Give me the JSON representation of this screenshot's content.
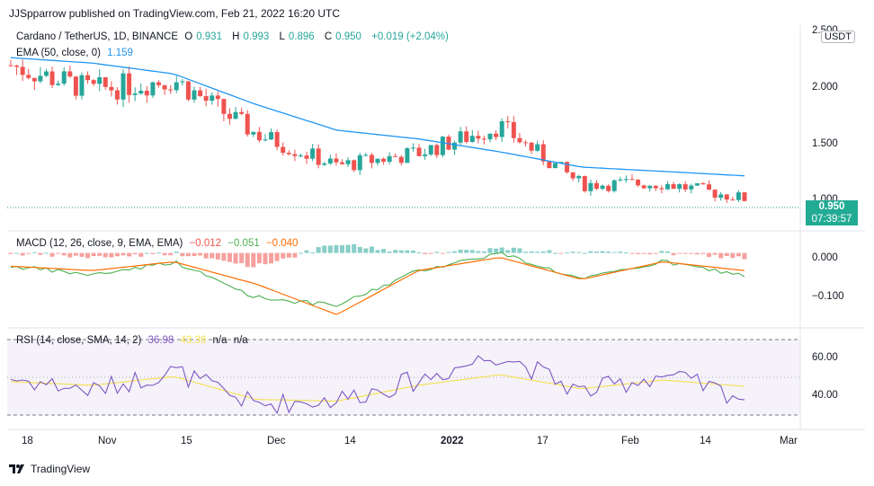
{
  "header": {
    "publisher_line": "JJSpparrow published on TradingView.com, Feb 21, 2022 16:20 UTC"
  },
  "main_legend": {
    "symbol": "Cardano / TetherUS, 1D, BINANCE",
    "open_label": "O",
    "open": "0.931",
    "high_label": "H",
    "high": "0.993",
    "low_label": "L",
    "low": "0.896",
    "close_label": "C",
    "close": "0.950",
    "change": "+0.019 (+2.04%)"
  },
  "ema_legend": {
    "label": "EMA (50, close, 0)",
    "value": "1.159"
  },
  "price_axis": {
    "ticks": [
      "2.500",
      "2.000",
      "1.500",
      "1.000"
    ],
    "currency": "USDT",
    "last_price": "0.950",
    "countdown": "07:39:57"
  },
  "macd_legend": {
    "label": "MACD (12, 26, close, 9, EMA, EMA)",
    "hist": "−0.012",
    "macd": "−0.051",
    "signal": "−0.040"
  },
  "macd_axis": {
    "ticks": [
      "0.000",
      "−0.100"
    ]
  },
  "rsi_legend": {
    "label": "RSI (14, close, SMA, 14, 2)",
    "rsi": "36.98",
    "ma": "43.39",
    "na1": "n/a",
    "na2": "n/a"
  },
  "rsi_axis": {
    "ticks": [
      "60.00",
      "40.00"
    ]
  },
  "time_axis": {
    "labels": [
      "18",
      "Nov",
      "15",
      "Dec",
      "14",
      "2022",
      "17",
      "Feb",
      "14",
      "Mar"
    ]
  },
  "footer": {
    "brand": "TradingView"
  },
  "colors": {
    "up": "#26a69a",
    "down": "#ef5350",
    "ema": "#2196f3",
    "macd": "#4caf50",
    "signal": "#ff6d00",
    "rsi": "#7e57c2",
    "rsi_ma": "#f4e04d"
  },
  "chart_data": {
    "type": "candlestick",
    "x": [
      "2021-10-18",
      "2021-11-01",
      "2021-11-15",
      "2021-12-01",
      "2021-12-14",
      "2022-01-01",
      "2022-01-17",
      "2022-02-01",
      "2022-02-14",
      "2022-02-21"
    ],
    "close": [
      2.18,
      1.95,
      2.05,
      1.55,
      1.25,
      1.37,
      1.62,
      1.08,
      1.09,
      0.95
    ],
    "ema_50": [
      2.25,
      2.2,
      2.1,
      1.82,
      1.58,
      1.5,
      1.38,
      1.24,
      1.2,
      1.159
    ],
    "macd": [
      -0.03,
      -0.05,
      -0.02,
      -0.1,
      -0.12,
      -0.04,
      0.0,
      -0.06,
      -0.02,
      -0.051
    ],
    "macd_signal": [
      -0.03,
      -0.04,
      -0.02,
      -0.07,
      -0.14,
      -0.04,
      -0.01,
      -0.06,
      -0.02,
      -0.04
    ],
    "rsi": [
      48,
      41,
      52,
      33,
      36,
      47,
      62,
      40,
      50,
      36.98
    ],
    "rsi_ma": [
      46,
      44,
      49,
      36,
      35,
      44,
      50,
      42,
      47,
      43.39
    ],
    "ylim_price": [
      0.85,
      2.55
    ],
    "ylim_macd": [
      -0.16,
      0.04
    ],
    "ylim_rsi": [
      20,
      75
    ]
  }
}
